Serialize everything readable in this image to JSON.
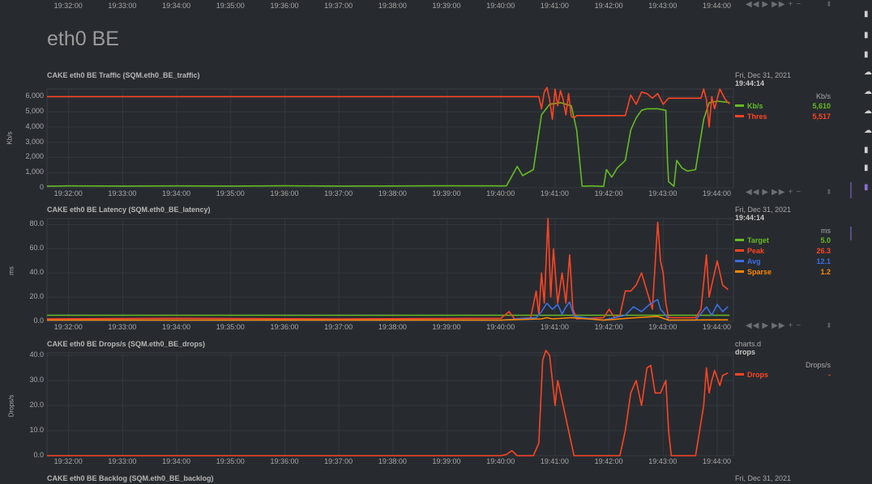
{
  "page_title": "eth0 BE",
  "time_ticks": [
    "19:32:00",
    "19:33:00",
    "19:34:00",
    "19:35:00",
    "19:36:00",
    "19:37:00",
    "19:38:00",
    "19:39:00",
    "19:40:00",
    "19:41:00",
    "19:42:00",
    "19:43:00",
    "19:44:00"
  ],
  "toolbar_icons": [
    "rewind-icon",
    "play-icon",
    "fast-forward-icon",
    "zoom-in-icon",
    "zoom-out-icon"
  ],
  "colors": {
    "background": "#272b30",
    "grid": "#353a40",
    "green": "#66bb22",
    "red": "#ff4422",
    "blue": "#3b6fe0",
    "orange": "#ff8800"
  },
  "chart_data": [
    {
      "type": "line",
      "title": "CAKE eth0 BE Traffic (SQM.eth0_BE_traffic)",
      "ylabel": "Kb/s",
      "units": "Kb/s",
      "ylim": [
        0,
        6500
      ],
      "yticks": [
        "0",
        "1,000",
        "2,000",
        "3,000",
        "4,000",
        "5,000",
        "6,000"
      ],
      "ytick_values": [
        0,
        1000,
        2000,
        3000,
        4000,
        5000,
        6000
      ],
      "legend_date": "Fri, Dec 31, 2021",
      "legend_time": "19:44:14",
      "series": [
        {
          "name": "Kb/s",
          "color": "#66bb22",
          "value_label": "5,610",
          "points": [
            [
              31.6,
              100
            ],
            [
              32,
              120
            ],
            [
              33,
              110
            ],
            [
              34,
              120
            ],
            [
              35,
              110
            ],
            [
              36,
              130
            ],
            [
              37,
              110
            ],
            [
              38,
              115
            ],
            [
              39,
              130
            ],
            [
              40.1,
              120
            ],
            [
              40.3,
              1400
            ],
            [
              40.4,
              800
            ],
            [
              40.6,
              1200
            ],
            [
              40.75,
              4800
            ],
            [
              40.9,
              5500
            ],
            [
              41.1,
              5600
            ],
            [
              41.3,
              5400
            ],
            [
              41.4,
              3800
            ],
            [
              41.5,
              100
            ],
            [
              41.7,
              120
            ],
            [
              41.9,
              90
            ],
            [
              41.95,
              1200
            ],
            [
              42.05,
              700
            ],
            [
              42.15,
              1300
            ],
            [
              42.3,
              1800
            ],
            [
              42.4,
              3800
            ],
            [
              42.5,
              4600
            ],
            [
              42.6,
              5100
            ],
            [
              42.7,
              5200
            ],
            [
              42.9,
              5200
            ],
            [
              43.05,
              5100
            ],
            [
              43.08,
              1800
            ],
            [
              43.1,
              400
            ],
            [
              43.2,
              100
            ],
            [
              43.25,
              1800
            ],
            [
              43.35,
              1300
            ],
            [
              43.45,
              1100
            ],
            [
              43.6,
              1200
            ],
            [
              43.75,
              4500
            ],
            [
              43.85,
              5600
            ],
            [
              44.0,
              5700
            ],
            [
              44.23,
              5610
            ]
          ]
        },
        {
          "name": "Thres",
          "color": "#ff4422",
          "value_label": "5,517",
          "points": [
            [
              31.6,
              6000
            ],
            [
              40.3,
              6000
            ],
            [
              40.4,
              6000
            ],
            [
              40.5,
              6000
            ],
            [
              40.7,
              6000
            ],
            [
              40.75,
              5200
            ],
            [
              40.8,
              6300
            ],
            [
              40.85,
              6600
            ],
            [
              40.9,
              5800
            ],
            [
              40.95,
              4500
            ],
            [
              41.0,
              6500
            ],
            [
              41.05,
              5400
            ],
            [
              41.1,
              6400
            ],
            [
              41.15,
              5800
            ],
            [
              41.2,
              4800
            ],
            [
              41.25,
              6200
            ],
            [
              41.3,
              4700
            ],
            [
              41.35,
              4600
            ],
            [
              41.4,
              4750
            ],
            [
              42.3,
              4750
            ],
            [
              42.4,
              6100
            ],
            [
              42.5,
              5500
            ],
            [
              42.6,
              6300
            ],
            [
              42.7,
              6200
            ],
            [
              42.8,
              5900
            ],
            [
              42.9,
              6200
            ],
            [
              43.0,
              5500
            ],
            [
              43.1,
              5900
            ],
            [
              43.3,
              5900
            ],
            [
              43.5,
              5900
            ],
            [
              43.7,
              5900
            ],
            [
              43.75,
              6500
            ],
            [
              43.8,
              5800
            ],
            [
              43.85,
              4000
            ],
            [
              43.9,
              6000
            ],
            [
              43.95,
              5200
            ],
            [
              44.05,
              6500
            ],
            [
              44.15,
              5800
            ],
            [
              44.23,
              5517
            ]
          ]
        }
      ]
    },
    {
      "type": "line",
      "title": "CAKE eth0 BE Latency (SQM.eth0_BE_latency)",
      "ylabel": "ms",
      "units": "ms",
      "ylim": [
        0,
        85
      ],
      "yticks": [
        "0.0",
        "20.0",
        "40.0",
        "60.0",
        "80.0"
      ],
      "ytick_values": [
        0,
        20,
        40,
        60,
        80
      ],
      "legend_date": "Fri, Dec 31, 2021",
      "legend_time": "19:44:14",
      "series": [
        {
          "name": "Target",
          "color": "#66bb22",
          "value_label": "5.0",
          "points": [
            [
              31.6,
              5
            ],
            [
              44.23,
              5
            ]
          ]
        },
        {
          "name": "Peak",
          "color": "#ff4422",
          "value_label": "26.3",
          "points": [
            [
              31.6,
              2
            ],
            [
              34,
              2.5
            ],
            [
              37,
              2
            ],
            [
              40.0,
              2.5
            ],
            [
              40.15,
              8
            ],
            [
              40.25,
              2
            ],
            [
              40.55,
              3
            ],
            [
              40.65,
              25
            ],
            [
              40.7,
              5
            ],
            [
              40.75,
              40
            ],
            [
              40.8,
              15
            ],
            [
              40.87,
              85
            ],
            [
              40.92,
              20
            ],
            [
              40.97,
              60
            ],
            [
              41.05,
              15
            ],
            [
              41.13,
              40
            ],
            [
              41.2,
              15
            ],
            [
              41.27,
              55
            ],
            [
              41.33,
              10
            ],
            [
              41.4,
              2
            ],
            [
              41.9,
              3
            ],
            [
              42.0,
              10
            ],
            [
              42.1,
              3
            ],
            [
              42.2,
              5
            ],
            [
              42.3,
              25
            ],
            [
              42.4,
              25
            ],
            [
              42.5,
              30
            ],
            [
              42.6,
              40
            ],
            [
              42.7,
              25
            ],
            [
              42.8,
              10
            ],
            [
              42.9,
              82
            ],
            [
              42.95,
              50
            ],
            [
              43.0,
              40
            ],
            [
              43.05,
              15
            ],
            [
              43.1,
              3
            ],
            [
              43.6,
              3
            ],
            [
              43.7,
              10
            ],
            [
              43.8,
              55
            ],
            [
              43.85,
              20
            ],
            [
              43.9,
              30
            ],
            [
              44.0,
              50
            ],
            [
              44.1,
              30
            ],
            [
              44.2,
              26.3
            ]
          ]
        },
        {
          "name": "Avg",
          "color": "#3b6fe0",
          "value_label": "12.1",
          "points": [
            [
              31.6,
              1
            ],
            [
              40.0,
              1
            ],
            [
              40.65,
              3
            ],
            [
              40.75,
              8
            ],
            [
              40.85,
              15
            ],
            [
              40.95,
              10
            ],
            [
              41.05,
              14
            ],
            [
              41.13,
              6
            ],
            [
              41.2,
              12
            ],
            [
              41.27,
              16
            ],
            [
              41.35,
              4
            ],
            [
              41.9,
              1
            ],
            [
              42.3,
              5
            ],
            [
              42.45,
              12
            ],
            [
              42.6,
              8
            ],
            [
              42.75,
              14
            ],
            [
              42.9,
              18
            ],
            [
              42.95,
              10
            ],
            [
              43.05,
              5
            ],
            [
              43.1,
              1
            ],
            [
              43.6,
              1
            ],
            [
              43.8,
              12
            ],
            [
              43.9,
              5
            ],
            [
              44.0,
              14
            ],
            [
              44.1,
              8
            ],
            [
              44.2,
              12.1
            ]
          ]
        },
        {
          "name": "Sparse",
          "color": "#ff8800",
          "value_label": "1.2",
          "points": [
            [
              31.6,
              1
            ],
            [
              40.0,
              1
            ],
            [
              40.75,
              2
            ],
            [
              40.85,
              3
            ],
            [
              40.95,
              2
            ],
            [
              41.3,
              3
            ],
            [
              41.9,
              1
            ],
            [
              42.5,
              3
            ],
            [
              42.9,
              4
            ],
            [
              43.1,
              1
            ],
            [
              44.2,
              1.2
            ]
          ]
        }
      ]
    },
    {
      "type": "line",
      "title": "CAKE eth0 BE Drops/s (SQM.eth0_BE_drops)",
      "ylabel": "Drops/s",
      "units": "Drops/s",
      "ylim": [
        0,
        41
      ],
      "yticks": [
        "0.0",
        "10.0",
        "20.0",
        "30.0",
        "40.0"
      ],
      "ytick_values": [
        0,
        10,
        20,
        30,
        40
      ],
      "legend_date": "charts.d",
      "legend_time": "drops",
      "series": [
        {
          "name": "Drops",
          "color": "#ff4422",
          "value_label": "-",
          "points": [
            [
              31.6,
              0
            ],
            [
              40.0,
              0
            ],
            [
              40.1,
              0.5
            ],
            [
              40.2,
              2
            ],
            [
              40.3,
              0
            ],
            [
              40.6,
              0
            ],
            [
              40.7,
              5
            ],
            [
              40.77,
              38
            ],
            [
              40.83,
              42
            ],
            [
              40.9,
              40
            ],
            [
              40.95,
              30
            ],
            [
              41.0,
              20
            ],
            [
              41.05,
              30
            ],
            [
              41.1,
              25
            ],
            [
              41.2,
              15
            ],
            [
              41.3,
              5
            ],
            [
              41.35,
              0
            ],
            [
              42.2,
              0
            ],
            [
              42.3,
              10
            ],
            [
              42.4,
              25
            ],
            [
              42.5,
              30
            ],
            [
              42.6,
              20
            ],
            [
              42.7,
              35
            ],
            [
              42.77,
              36
            ],
            [
              42.85,
              25
            ],
            [
              42.95,
              25
            ],
            [
              43.05,
              30
            ],
            [
              43.1,
              10
            ],
            [
              43.15,
              0
            ],
            [
              43.6,
              0
            ],
            [
              43.75,
              20
            ],
            [
              43.8,
              35
            ],
            [
              43.85,
              25
            ],
            [
              43.9,
              30
            ],
            [
              43.95,
              34
            ],
            [
              44.05,
              28
            ],
            [
              44.1,
              32
            ],
            [
              44.2,
              33
            ]
          ]
        }
      ]
    },
    {
      "type": "line",
      "title": "CAKE eth0 BE Backlog (SQM.eth0_BE_backlog)",
      "legend_date": "Fri, Dec 31, 2021"
    }
  ]
}
